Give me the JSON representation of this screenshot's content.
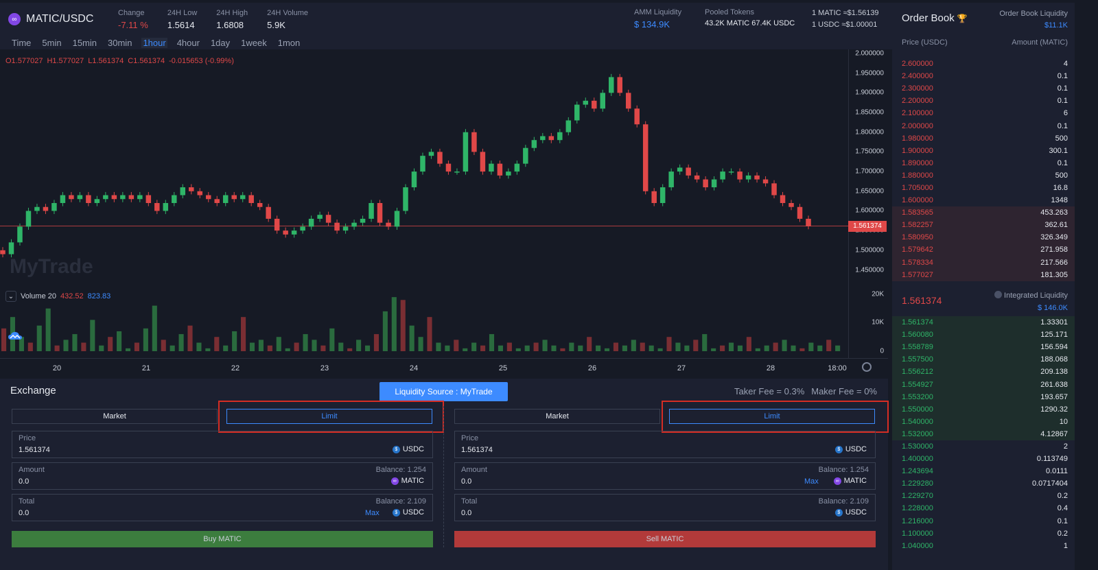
{
  "header": {
    "pair": "MATIC/USDC",
    "change_label": "Change",
    "change_value": "-7.11 %",
    "low_label": "24H Low",
    "low_value": "1.5614",
    "high_label": "24H High",
    "high_value": "1.6808",
    "volume_label": "24H Volume",
    "volume_value": "5.9K",
    "amm_label": "AMM Liquidity",
    "amm_value": "$ 134.9K",
    "pooled_label": "Pooled Tokens",
    "pooled_value": "43.2K MATIC  67.4K USDC",
    "rate1": "1 MATIC ≈$1.56139",
    "rate2": "1 USDC ≈$1.00001"
  },
  "tabs": [
    "Time",
    "5min",
    "15min",
    "30min",
    "1hour",
    "4hour",
    "1day",
    "1week",
    "1mon"
  ],
  "active_tab": "1hour",
  "chart_legend": {
    "o": "O1.577027",
    "h": "H1.577027",
    "l": "L1.561374",
    "c": "C1.561374",
    "chg": "-0.015653 (-0.99%)",
    "vol_label": "Volume 20",
    "vol_a": "432.52",
    "vol_b": "823.83",
    "watermark": "MyTrade"
  },
  "chart_data": {
    "type": "candlestick",
    "y_ticks": [
      "2.000000",
      "1.950000",
      "1.900000",
      "1.850000",
      "1.800000",
      "1.750000",
      "1.700000",
      "1.650000",
      "1.600000",
      "1.550000",
      "1.500000",
      "1.450000"
    ],
    "vol_ticks": [
      "20K",
      "10K",
      "0"
    ],
    "x_ticks": [
      "20",
      "21",
      "22",
      "23",
      "24",
      "25",
      "26",
      "27",
      "28",
      "18:00"
    ],
    "last_price": "1.561374",
    "ylim": [
      1.43,
      2.0
    ],
    "close_path": [
      1.49,
      1.52,
      1.56,
      1.6,
      1.61,
      1.6,
      1.62,
      1.64,
      1.63,
      1.64,
      1.62,
      1.63,
      1.64,
      1.63,
      1.64,
      1.63,
      1.64,
      1.62,
      1.6,
      1.62,
      1.64,
      1.66,
      1.65,
      1.64,
      1.63,
      1.62,
      1.64,
      1.63,
      1.64,
      1.62,
      1.61,
      1.58,
      1.55,
      1.54,
      1.55,
      1.56,
      1.58,
      1.59,
      1.57,
      1.55,
      1.56,
      1.57,
      1.58,
      1.62,
      1.57,
      1.56,
      1.6,
      1.66,
      1.7,
      1.74,
      1.75,
      1.72,
      1.7,
      1.7,
      1.8,
      1.75,
      1.7,
      1.72,
      1.69,
      1.7,
      1.72,
      1.76,
      1.78,
      1.79,
      1.78,
      1.8,
      1.83,
      1.87,
      1.88,
      1.86,
      1.9,
      1.94,
      1.9,
      1.86,
      1.82,
      1.65,
      1.62,
      1.66,
      1.7,
      1.71,
      1.69,
      1.68,
      1.66,
      1.68,
      1.7,
      1.7,
      1.68,
      1.69,
      1.68,
      1.67,
      1.64,
      1.62,
      1.61,
      1.58,
      1.561374
    ],
    "volumes": [
      8,
      12,
      5,
      3,
      9,
      15,
      2,
      4,
      6,
      3,
      11,
      2,
      5,
      7,
      1,
      3,
      8,
      16,
      4,
      2,
      6,
      9,
      3,
      1,
      5,
      2,
      7,
      12,
      3,
      4,
      2,
      5,
      1,
      3,
      6,
      4,
      2,
      8,
      3,
      1,
      4,
      2,
      6,
      14,
      19,
      18,
      9,
      5,
      12,
      3,
      2,
      4,
      1,
      3,
      2,
      6,
      2,
      3,
      1,
      2,
      3,
      4,
      2,
      1,
      3,
      2,
      5,
      2,
      1,
      3,
      2,
      4,
      3,
      2,
      1,
      5,
      3,
      2,
      4,
      6,
      1,
      2,
      3,
      2,
      5,
      1,
      2,
      3,
      4,
      2,
      1,
      3,
      2,
      4,
      2
    ]
  },
  "orderbook": {
    "title": "Order Book",
    "liq_label": "Order Book Liquidity",
    "liq_value": "$11.1K",
    "col_price": "Price (USDC)",
    "col_amount": "Amount (MATIC)",
    "asks_top": [
      {
        "p": "2.600000",
        "a": "4"
      },
      {
        "p": "2.400000",
        "a": "0.1"
      },
      {
        "p": "2.300000",
        "a": "0.1"
      },
      {
        "p": "2.200000",
        "a": "0.1"
      },
      {
        "p": "2.100000",
        "a": "6"
      },
      {
        "p": "2.000000",
        "a": "0.1"
      },
      {
        "p": "1.980000",
        "a": "500"
      },
      {
        "p": "1.900000",
        "a": "300.1"
      },
      {
        "p": "1.890000",
        "a": "0.1"
      },
      {
        "p": "1.880000",
        "a": "500"
      },
      {
        "p": "1.705000",
        "a": "16.8"
      },
      {
        "p": "1.600000",
        "a": "1348"
      }
    ],
    "asks_near": [
      {
        "p": "1.583565",
        "a": "453.263"
      },
      {
        "p": "1.582257",
        "a": "362.61"
      },
      {
        "p": "1.580950",
        "a": "326.349"
      },
      {
        "p": "1.579642",
        "a": "271.958"
      },
      {
        "p": "1.578334",
        "a": "217.566"
      },
      {
        "p": "1.577027",
        "a": "181.305"
      }
    ],
    "last": "1.561374",
    "il_label": "Integrated Liquidity",
    "il_value": "$ 146.0K",
    "bids_near": [
      {
        "p": "1.561374",
        "a": "1.33301"
      },
      {
        "p": "1.560080",
        "a": "125.171"
      },
      {
        "p": "1.558789",
        "a": "156.594"
      },
      {
        "p": "1.557500",
        "a": "188.068"
      },
      {
        "p": "1.556212",
        "a": "209.138"
      },
      {
        "p": "1.554927",
        "a": "261.638"
      },
      {
        "p": "1.553200",
        "a": "193.657"
      },
      {
        "p": "1.550000",
        "a": "1290.32"
      },
      {
        "p": "1.540000",
        "a": "10"
      },
      {
        "p": "1.532000",
        "a": "4.12867"
      }
    ],
    "bids_far": [
      {
        "p": "1.530000",
        "a": "2"
      },
      {
        "p": "1.400000",
        "a": "0.113749"
      },
      {
        "p": "1.243694",
        "a": "0.0111"
      },
      {
        "p": "1.229280",
        "a": "0.0717404"
      },
      {
        "p": "1.229270",
        "a": "0.2"
      },
      {
        "p": "1.228000",
        "a": "0.4"
      },
      {
        "p": "1.216000",
        "a": "0.1"
      },
      {
        "p": "1.100000",
        "a": "0.2"
      },
      {
        "p": "1.040000",
        "a": "1"
      }
    ]
  },
  "exchange": {
    "title": "Exchange",
    "liquidity_source": "Liquidity Source : MyTrade",
    "taker_fee": "Taker Fee = 0.3%",
    "maker_fee": "Maker Fee = 0%",
    "buy": {
      "market": "Market",
      "limit": "Limit",
      "price_label": "Price",
      "price_value": "1.561374",
      "price_unit": "USDC",
      "amount_label": "Amount",
      "amount_value": "0.0",
      "amount_balance": "Balance: 1.254",
      "amount_unit": "MATIC",
      "total_label": "Total",
      "total_value": "0.0",
      "total_balance": "Balance: 2.109",
      "total_unit": "USDC",
      "max": "Max",
      "action": "Buy MATIC"
    },
    "sell": {
      "market": "Market",
      "limit": "Limit",
      "price_label": "Price",
      "price_value": "1.561374",
      "price_unit": "USDC",
      "amount_label": "Amount",
      "amount_value": "0.0",
      "amount_balance": "Balance: 1.254",
      "amount_unit": "MATIC",
      "max": "Max",
      "total_label": "Total",
      "total_value": "0.0",
      "total_balance": "Balance: 2.109",
      "total_unit": "USDC",
      "action": "Sell MATIC"
    }
  },
  "colors": {
    "up": "#2fb568",
    "down": "#e04848",
    "accent": "#3d8bff"
  }
}
